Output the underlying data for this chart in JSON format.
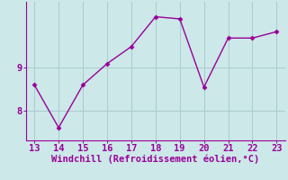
{
  "x": [
    13,
    14,
    15,
    16,
    17,
    18,
    19,
    20,
    21,
    22,
    23
  ],
  "y": [
    8.6,
    7.6,
    8.6,
    9.1,
    9.5,
    10.2,
    10.15,
    8.55,
    9.7,
    9.7,
    9.85
  ],
  "line_color": "#990099",
  "marker_color": "#990099",
  "bg_color": "#cce8e8",
  "grid_color": "#aacccc",
  "xlabel": "Windchill (Refroidissement éolien,°C)",
  "xlabel_color": "#990099",
  "tick_color": "#990099",
  "spine_color": "#990099",
  "yticks": [
    8,
    9
  ],
  "xticks": [
    13,
    14,
    15,
    16,
    17,
    18,
    19,
    20,
    21,
    22,
    23
  ],
  "ylim": [
    7.3,
    10.55
  ],
  "xlim": [
    12.65,
    23.35
  ],
  "xlabel_fontsize": 7.5,
  "tick_fontsize": 7.5,
  "linewidth": 1.0,
  "markersize": 2.5
}
